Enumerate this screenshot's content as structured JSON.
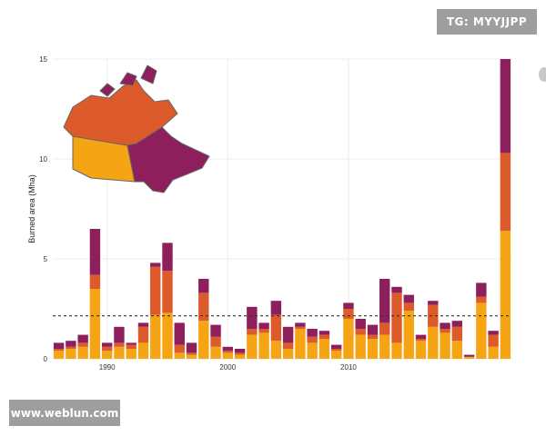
{
  "watermarks": {
    "top_right": "TG: MYYJJPP",
    "bottom_left": "www.weblun.com"
  },
  "colors": {
    "bottom_segment": "#F5A514",
    "middle_segment": "#DD5A2B",
    "top_segment": "#8E1F5D",
    "threshold_line": "#333333",
    "map_outline": "#666666"
  },
  "inset_map": {
    "icon": "canada-map-icon",
    "regions": [
      "west-orange",
      "northwest-redorange",
      "east-purple"
    ]
  },
  "chart_data": {
    "type": "bar",
    "stacked": true,
    "title": "",
    "xlabel": "",
    "ylabel": "Burned area (Mha)",
    "ylim": [
      0,
      15
    ],
    "yticks": [
      0,
      5,
      10,
      15
    ],
    "xticks": [
      1990,
      2000,
      2010
    ],
    "xlim": [
      1985.5,
      2023.5
    ],
    "grid": true,
    "threshold": 2.15,
    "categories": [
      1986,
      1987,
      1988,
      1989,
      1990,
      1991,
      1992,
      1993,
      1994,
      1995,
      1996,
      1997,
      1998,
      1999,
      2000,
      2001,
      2002,
      2003,
      2004,
      2005,
      2006,
      2007,
      2008,
      2009,
      2010,
      2011,
      2012,
      2013,
      2014,
      2015,
      2016,
      2017,
      2018,
      2019,
      2020,
      2021,
      2022,
      2023
    ],
    "series": [
      {
        "color_key": "bottom_segment",
        "values": [
          0.4,
          0.5,
          0.6,
          3.5,
          0.4,
          0.6,
          0.5,
          0.8,
          2.2,
          2.3,
          0.3,
          0.2,
          1.9,
          0.6,
          0.3,
          0.2,
          1.2,
          1.3,
          0.9,
          0.5,
          1.5,
          0.8,
          1.0,
          0.4,
          2.0,
          1.2,
          1.0,
          1.2,
          0.8,
          2.4,
          0.9,
          1.6,
          1.3,
          0.9,
          0.1,
          2.8,
          0.6,
          6.4
        ]
      },
      {
        "color_key": "middle_segment",
        "values": [
          0.1,
          0.1,
          0.2,
          0.7,
          0.2,
          0.2,
          0.2,
          0.8,
          2.4,
          2.1,
          0.4,
          0.1,
          1.4,
          0.5,
          0.1,
          0.1,
          0.3,
          0.2,
          1.3,
          0.3,
          0.1,
          0.3,
          0.2,
          0.1,
          0.5,
          0.3,
          0.2,
          0.6,
          2.5,
          0.4,
          0.1,
          1.1,
          0.2,
          0.7,
          0.0,
          0.3,
          0.6,
          3.9
        ]
      },
      {
        "color_key": "top_segment",
        "values": [
          0.3,
          0.3,
          0.4,
          2.3,
          0.2,
          0.8,
          0.1,
          0.2,
          0.2,
          1.4,
          1.1,
          0.5,
          0.7,
          0.6,
          0.2,
          0.2,
          1.1,
          0.3,
          0.7,
          0.8,
          0.2,
          0.4,
          0.2,
          0.2,
          0.3,
          0.5,
          0.5,
          2.2,
          0.3,
          0.4,
          0.2,
          0.2,
          0.3,
          0.3,
          0.1,
          0.7,
          0.2,
          4.7
        ]
      }
    ]
  }
}
